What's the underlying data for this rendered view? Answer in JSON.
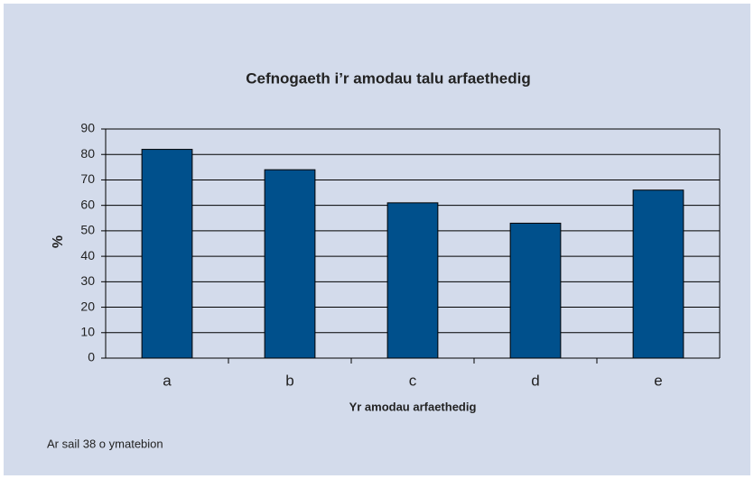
{
  "chart_data": {
    "type": "bar",
    "title": "Cefnogaeth i’r amodau talu arfaethedig",
    "x_label": "Yr amodau arfaethedig",
    "y_label": "%",
    "note": "Ar sail 38 o ymatebion",
    "categories": [
      "a",
      "b",
      "c",
      "d",
      "e"
    ],
    "values": [
      82,
      74,
      61,
      53,
      66
    ],
    "color": "#00508c",
    "ylim": [
      0,
      90
    ],
    "yticks": [
      0,
      10,
      20,
      30,
      40,
      50,
      60,
      70,
      80,
      90
    ],
    "grid": true
  }
}
